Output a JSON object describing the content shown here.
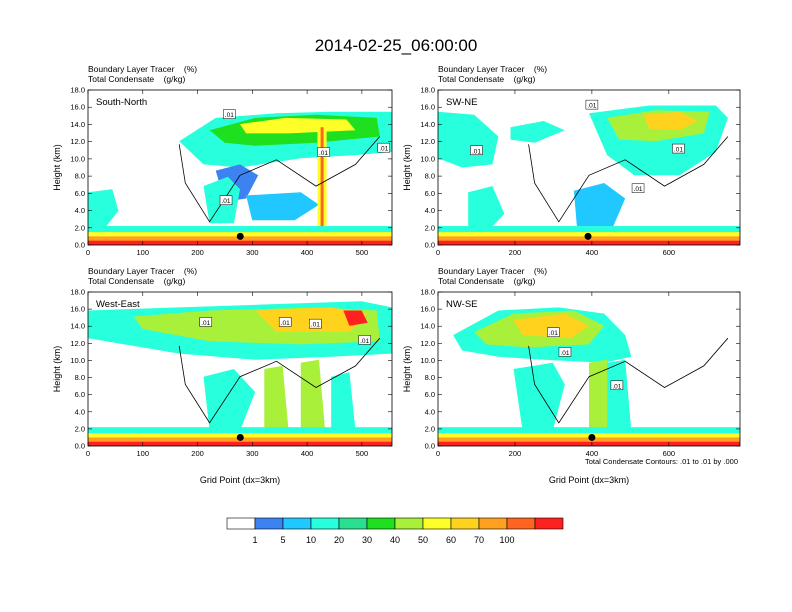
{
  "title": "2014-02-25_06:00:00",
  "chart_data": [
    {
      "type": "heatmap",
      "panel_label": "South-North",
      "header_lines": [
        "Boundary Layer Tracer    (%)",
        "Total Condensate    (g/kg)"
      ],
      "ylabel": "Height (km)",
      "xlabel": "",
      "xlim": [
        0,
        555
      ],
      "ylim": [
        0,
        18
      ],
      "xticks": [
        0,
        100,
        200,
        300,
        400,
        500
      ],
      "xtick_labels": [
        "0",
        "100",
        "200",
        "300",
        "400",
        "500"
      ],
      "yticks": [
        0,
        2,
        4,
        6,
        8,
        10,
        12,
        14,
        16,
        18
      ],
      "ytick_labels": [
        "0.0",
        "2.0",
        "4.0",
        "6.0",
        "8.0",
        "10.0",
        "12.0",
        "14.0",
        "16.0",
        "18.0"
      ],
      "contour_labels": [
        {
          "x": 258,
          "y": 15.2,
          "text": ".01"
        },
        {
          "x": 430,
          "y": 10.8,
          "text": ".01"
        },
        {
          "x": 252,
          "y": 5.2,
          "text": ".01"
        },
        {
          "x": 540,
          "y": 11.3,
          "text": ".01"
        }
      ],
      "marker": {
        "x": 278,
        "y": 1.0
      }
    },
    {
      "type": "heatmap",
      "panel_label": "SW-NE",
      "header_lines": [
        "Boundary Layer Tracer    (%)",
        "Total Condensate    (g/kg)"
      ],
      "ylabel": "Height (km)",
      "xlabel": "",
      "xlim": [
        0,
        785
      ],
      "ylim": [
        0,
        18
      ],
      "xticks": [
        0,
        200,
        400,
        600
      ],
      "xtick_labels": [
        "0",
        "200",
        "400",
        "600"
      ],
      "yticks": [
        0,
        2,
        4,
        6,
        8,
        10,
        12,
        14,
        16,
        18
      ],
      "ytick_labels": [
        "0.0",
        "2.0",
        "4.0",
        "6.0",
        "8.0",
        "10.0",
        "12.0",
        "14.0",
        "16.0",
        "18.0"
      ],
      "contour_labels": [
        {
          "x": 400,
          "y": 16.3,
          "text": ".01"
        },
        {
          "x": 100,
          "y": 11.0,
          "text": ".01"
        },
        {
          "x": 625,
          "y": 11.2,
          "text": ".01"
        },
        {
          "x": 520,
          "y": 6.6,
          "text": ".01"
        }
      ],
      "marker": {
        "x": 390,
        "y": 1.0
      }
    },
    {
      "type": "heatmap",
      "panel_label": "West-East",
      "header_lines": [
        "Boundary Layer Tracer    (%)",
        "Total Condensate    (g/kg)"
      ],
      "ylabel": "Height (km)",
      "xlabel": "Grid Point (dx=3km)",
      "xlim": [
        0,
        555
      ],
      "ylim": [
        0,
        18
      ],
      "xticks": [
        0,
        100,
        200,
        300,
        400,
        500
      ],
      "xtick_labels": [
        "0",
        "100",
        "200",
        "300",
        "400",
        "500"
      ],
      "yticks": [
        0,
        2,
        4,
        6,
        8,
        10,
        12,
        14,
        16,
        18
      ],
      "ytick_labels": [
        "0.0",
        "2.0",
        "4.0",
        "6.0",
        "8.0",
        "10.0",
        "12.0",
        "14.0",
        "16.0",
        "18.0"
      ],
      "contour_labels": [
        {
          "x": 215,
          "y": 14.5,
          "text": ".01"
        },
        {
          "x": 360,
          "y": 14.5,
          "text": ".01"
        },
        {
          "x": 415,
          "y": 14.3,
          "text": ".01"
        },
        {
          "x": 505,
          "y": 12.4,
          "text": ".01"
        }
      ],
      "marker": {
        "x": 278,
        "y": 1.0
      }
    },
    {
      "type": "heatmap",
      "panel_label": "NW-SE",
      "header_lines": [
        "Boundary Layer Tracer    (%)",
        "Total Condensate    (g/kg)"
      ],
      "ylabel": "Height (km)",
      "xlabel": "Grid Point (dx=3km)",
      "xlim": [
        0,
        785
      ],
      "ylim": [
        0,
        18
      ],
      "xticks": [
        0,
        200,
        400,
        600
      ],
      "xtick_labels": [
        "0",
        "200",
        "400",
        "600"
      ],
      "yticks": [
        0,
        2,
        4,
        6,
        8,
        10,
        12,
        14,
        16,
        18
      ],
      "ytick_labels": [
        "0.0",
        "2.0",
        "4.0",
        "6.0",
        "8.0",
        "10.0",
        "12.0",
        "14.0",
        "16.0",
        "18.0"
      ],
      "contour_labels": [
        {
          "x": 300,
          "y": 13.3,
          "text": ".01"
        },
        {
          "x": 330,
          "y": 11.0,
          "text": ".01"
        },
        {
          "x": 465,
          "y": 7.1,
          "text": ".01"
        }
      ],
      "marker": {
        "x": 400,
        "y": 1.0
      }
    }
  ],
  "contour_note": "Total Condensate Contours: .01 to .01 by .000",
  "colorbar": {
    "colors": [
      "#ffffff",
      "#3c82f0",
      "#20c8ff",
      "#28ffdc",
      "#2ae090",
      "#1ee01e",
      "#a8f03a",
      "#ffff28",
      "#ffd21e",
      "#ffa020",
      "#ff6420",
      "#ff2020"
    ],
    "labels": [
      "1",
      "5",
      "10",
      "20",
      "30",
      "40",
      "50",
      "60",
      "70",
      "100"
    ]
  }
}
